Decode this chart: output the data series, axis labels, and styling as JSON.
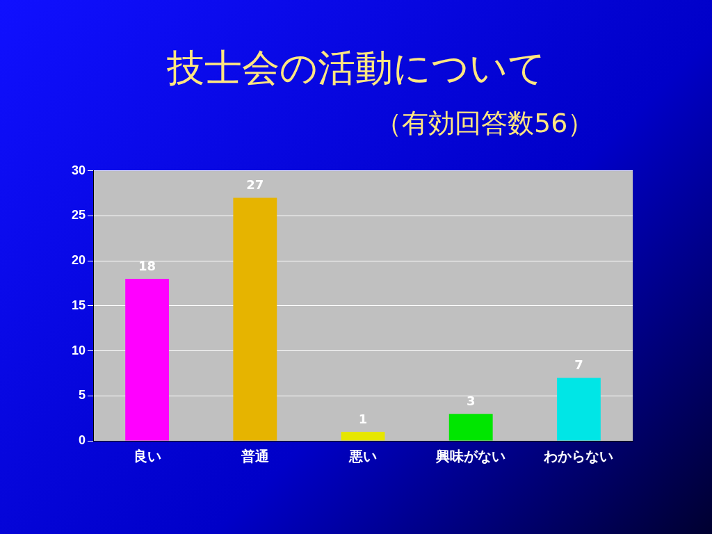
{
  "chart_data": {
    "type": "bar",
    "title": "技士会の活動について",
    "subtitle": "（有効回答数56）",
    "categories": [
      "良い",
      "普通",
      "悪い",
      "興味がない",
      "わからない"
    ],
    "values": [
      18,
      27,
      1,
      3,
      7
    ],
    "colors": [
      "#ff00ff",
      "#e6b400",
      "#e6e600",
      "#00e600",
      "#00e6e6"
    ],
    "ylim": [
      0,
      30
    ],
    "yticks": [
      0,
      5,
      10,
      15,
      20,
      25,
      30
    ],
    "grid": "y",
    "data_labels": true,
    "legend": false
  }
}
